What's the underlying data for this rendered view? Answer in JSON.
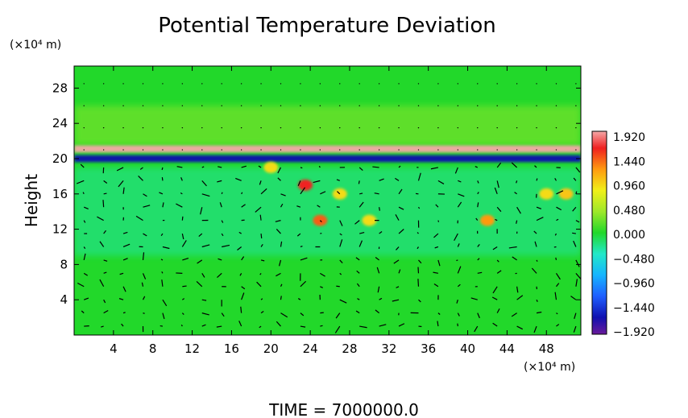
{
  "chart_data": {
    "type": "heatmap",
    "title": "Potential Temperature Deviation",
    "xlabel": "",
    "ylabel": "Height",
    "x_unit": "(×10⁴ m)",
    "y_unit": "(×10⁴ m)",
    "xlim": [
      0,
      51.5
    ],
    "ylim": [
      0,
      30.5
    ],
    "x_ticks": [
      4,
      8,
      12,
      16,
      20,
      24,
      28,
      32,
      36,
      40,
      44,
      48
    ],
    "y_ticks": [
      4,
      8,
      12,
      16,
      20,
      24,
      28
    ],
    "colorbar": {
      "labels": [
        "1.920",
        "1.440",
        "0.960",
        "0.480",
        "0.000",
        "−0.480",
        "−0.960",
        "−1.440",
        "−1.920"
      ],
      "vmin": -1.92,
      "vmax": 1.92,
      "stops": [
        {
          "v": -1.92,
          "color": "#6a1a9a"
        },
        {
          "v": -1.6,
          "color": "#1010b0"
        },
        {
          "v": -1.2,
          "color": "#1f5fff"
        },
        {
          "v": -0.8,
          "color": "#15b5ff"
        },
        {
          "v": -0.4,
          "color": "#22e8c8"
        },
        {
          "v": 0.0,
          "color": "#22d82a"
        },
        {
          "v": 0.4,
          "color": "#9ee82a"
        },
        {
          "v": 0.8,
          "color": "#f0f018"
        },
        {
          "v": 1.2,
          "color": "#ff9a10"
        },
        {
          "v": 1.6,
          "color": "#ef2020"
        },
        {
          "v": 1.92,
          "color": "#f5a8a8"
        }
      ]
    },
    "background_color": "#22d82a",
    "bands": [
      {
        "name": "upper-light-band",
        "y_from": 21.5,
        "y_to": 26,
        "value": 0.35
      },
      {
        "name": "warm-layer",
        "y_from": 20.7,
        "y_to": 21.5,
        "value": 1.92
      },
      {
        "name": "cold-layer",
        "y_from": 19.6,
        "y_to": 20.4,
        "value": -1.6
      },
      {
        "name": "cool-layer-mid",
        "y_from": 9,
        "y_to": 19,
        "value": -0.3
      }
    ],
    "anomalies": [
      {
        "x": 23.5,
        "y": 17,
        "value": 1.6
      },
      {
        "x": 25,
        "y": 13,
        "value": 1.4
      },
      {
        "x": 27,
        "y": 16,
        "value": 0.9
      },
      {
        "x": 42,
        "y": 13,
        "value": 1.2
      },
      {
        "x": 48,
        "y": 16,
        "value": 0.9
      },
      {
        "x": 50,
        "y": 16,
        "value": 1.0
      },
      {
        "x": 30,
        "y": 13,
        "value": 0.9
      },
      {
        "x": 20,
        "y": 19,
        "value": 0.9
      }
    ],
    "vectors": {
      "description": "wind vectors",
      "x_start": 1,
      "x_step": 2,
      "y_start": 1,
      "y_step": 1.5
    }
  },
  "footer": {
    "time_label": "TIME  =  7000000.0"
  }
}
